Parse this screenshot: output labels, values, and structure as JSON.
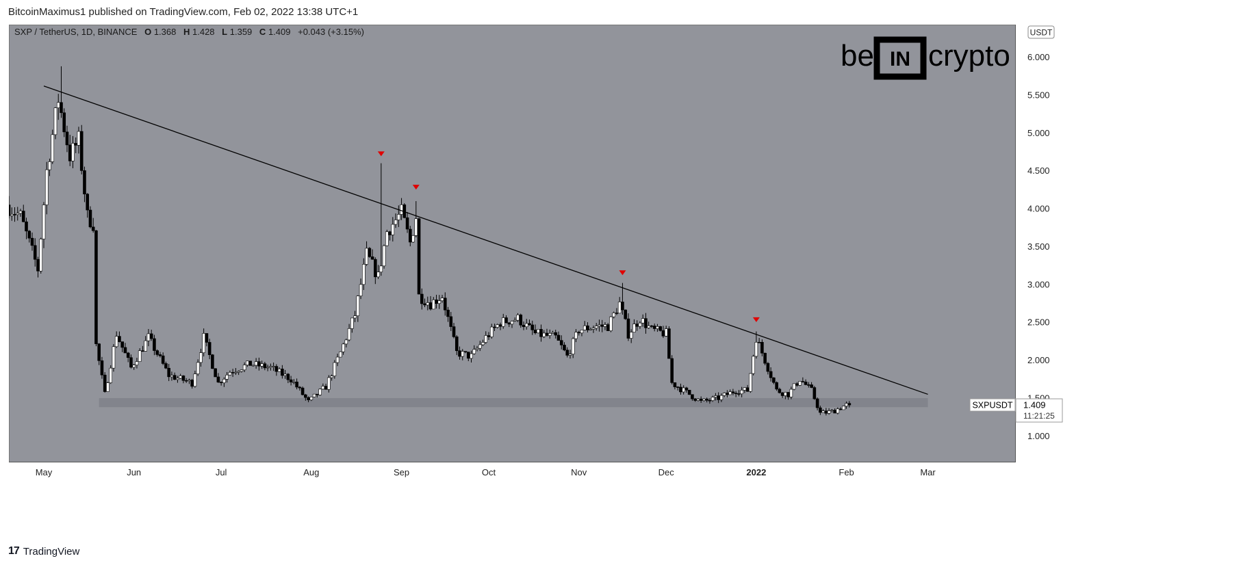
{
  "publisher_line": "BitcoinMaximus1 published on TradingView.com, Feb 02, 2022 13:38 UTC+1",
  "footer": {
    "logo_mark": "17",
    "logo_text": "TradingView"
  },
  "watermark": {
    "left": "be",
    "right": "crypto",
    "center": "IN"
  },
  "colors": {
    "plot_bg": "#92949b",
    "axis_bg": "#ffffff",
    "up_fill": "#ffffff",
    "down_fill": "#000000",
    "trendline": "#000000",
    "support_zone": "#7c7f87",
    "marker": "#e00000"
  },
  "chart_data": {
    "type": "candlestick",
    "symbol_header": {
      "pair": "SXP / TetherUS, 1D, BINANCE",
      "open_label": "O",
      "open": "1.368",
      "high_label": "H",
      "high": "1.428",
      "low_label": "L",
      "low": "1.359",
      "close_label": "C",
      "close": "1.409",
      "change": "+0.043 (+3.15%)"
    },
    "currency_badge": "USDT",
    "y_axis": {
      "ticks": [
        "6.000",
        "5.500",
        "5.000",
        "4.500",
        "4.000",
        "3.500",
        "3.000",
        "2.500",
        "2.000",
        "1.500",
        "1.000"
      ],
      "ylim": [
        0.66,
        6.43
      ]
    },
    "x_axis": {
      "ticks": [
        "May",
        "Jun",
        "Jul",
        "Aug",
        "Sep",
        "Oct",
        "Nov",
        "Dec",
        "2022",
        "Feb",
        "Mar"
      ],
      "tick_dates": [
        "2021-05-01",
        "2021-06-01",
        "2021-07-01",
        "2021-08-01",
        "2021-09-01",
        "2021-10-01",
        "2021-11-01",
        "2021-12-01",
        "2022-01-01",
        "2022-02-01",
        "2022-03-01"
      ],
      "xlim": [
        "2021-04-19",
        "2022-03-31"
      ]
    },
    "last_price_label": {
      "symbol": "SXPUSDT",
      "price": "1.409",
      "countdown": "11:21:25"
    },
    "trendline": {
      "start": [
        "2021-05-01",
        5.62
      ],
      "end": [
        "2022-03-01",
        1.55
      ]
    },
    "support_zone": {
      "from": "2021-05-20",
      "to": "2022-03-01",
      "low": 1.38,
      "high": 1.5
    },
    "resistance_markers": [
      {
        "date": "2021-08-25",
        "price": 4.72
      },
      {
        "date": "2021-09-06",
        "price": 4.28
      },
      {
        "date": "2021-11-16",
        "price": 3.15
      },
      {
        "date": "2022-01-01",
        "price": 2.53
      }
    ],
    "anchors": [
      {
        "date": "2021-04-19",
        "price": 4.05
      },
      {
        "date": "2021-04-24",
        "price": 3.9
      },
      {
        "date": "2021-04-30",
        "price": 3.2
      },
      {
        "date": "2021-05-03",
        "price": 4.5
      },
      {
        "date": "2021-05-07",
        "price": 5.45
      },
      {
        "date": "2021-05-11",
        "price": 4.7
      },
      {
        "date": "2021-05-14",
        "price": 4.9
      },
      {
        "date": "2021-05-17",
        "price": 3.9
      },
      {
        "date": "2021-05-19",
        "price": 3.8
      },
      {
        "date": "2021-05-20",
        "price": 2.2
      },
      {
        "date": "2021-05-23",
        "price": 1.55
      },
      {
        "date": "2021-05-27",
        "price": 2.35
      },
      {
        "date": "2021-06-01",
        "price": 1.9
      },
      {
        "date": "2021-06-07",
        "price": 2.3
      },
      {
        "date": "2021-06-14",
        "price": 1.8
      },
      {
        "date": "2021-06-22",
        "price": 1.7
      },
      {
        "date": "2021-06-26",
        "price": 2.3
      },
      {
        "date": "2021-07-01",
        "price": 1.7
      },
      {
        "date": "2021-07-05",
        "price": 1.85
      },
      {
        "date": "2021-07-12",
        "price": 1.95
      },
      {
        "date": "2021-07-19",
        "price": 1.9
      },
      {
        "date": "2021-07-26",
        "price": 1.75
      },
      {
        "date": "2021-08-01",
        "price": 1.45
      },
      {
        "date": "2021-08-07",
        "price": 1.65
      },
      {
        "date": "2021-08-12",
        "price": 2.1
      },
      {
        "date": "2021-08-17",
        "price": 2.6
      },
      {
        "date": "2021-08-21",
        "price": 3.4
      },
      {
        "date": "2021-08-25",
        "price": 3.1
      },
      {
        "date": "2021-08-28",
        "price": 3.7
      },
      {
        "date": "2021-09-02",
        "price": 3.95
      },
      {
        "date": "2021-09-05",
        "price": 3.55
      },
      {
        "date": "2021-09-07",
        "price": 3.9
      },
      {
        "date": "2021-09-08",
        "price": 2.85
      },
      {
        "date": "2021-09-12",
        "price": 2.75
      },
      {
        "date": "2021-09-16",
        "price": 2.85
      },
      {
        "date": "2021-09-21",
        "price": 2.1
      },
      {
        "date": "2021-09-26",
        "price": 2.05
      },
      {
        "date": "2021-10-01",
        "price": 2.3
      },
      {
        "date": "2021-10-06",
        "price": 2.5
      },
      {
        "date": "2021-10-12",
        "price": 2.55
      },
      {
        "date": "2021-10-18",
        "price": 2.35
      },
      {
        "date": "2021-10-25",
        "price": 2.3
      },
      {
        "date": "2021-10-29",
        "price": 2.05
      },
      {
        "date": "2021-11-02",
        "price": 2.4
      },
      {
        "date": "2021-11-08",
        "price": 2.45
      },
      {
        "date": "2021-11-12",
        "price": 2.45
      },
      {
        "date": "2021-11-16",
        "price": 2.75
      },
      {
        "date": "2021-11-19",
        "price": 2.35
      },
      {
        "date": "2021-11-23",
        "price": 2.55
      },
      {
        "date": "2021-11-27",
        "price": 2.4
      },
      {
        "date": "2021-12-02",
        "price": 2.35
      },
      {
        "date": "2021-12-04",
        "price": 1.7
      },
      {
        "date": "2021-12-08",
        "price": 1.6
      },
      {
        "date": "2021-12-14",
        "price": 1.45
      },
      {
        "date": "2021-12-20",
        "price": 1.5
      },
      {
        "date": "2021-12-26",
        "price": 1.6
      },
      {
        "date": "2021-12-30",
        "price": 1.6
      },
      {
        "date": "2022-01-02",
        "price": 2.3
      },
      {
        "date": "2022-01-05",
        "price": 2.0
      },
      {
        "date": "2022-01-09",
        "price": 1.6
      },
      {
        "date": "2022-01-13",
        "price": 1.55
      },
      {
        "date": "2022-01-17",
        "price": 1.75
      },
      {
        "date": "2022-01-21",
        "price": 1.6
      },
      {
        "date": "2022-01-24",
        "price": 1.3
      },
      {
        "date": "2022-01-28",
        "price": 1.32
      },
      {
        "date": "2022-02-02",
        "price": 1.409
      }
    ]
  }
}
